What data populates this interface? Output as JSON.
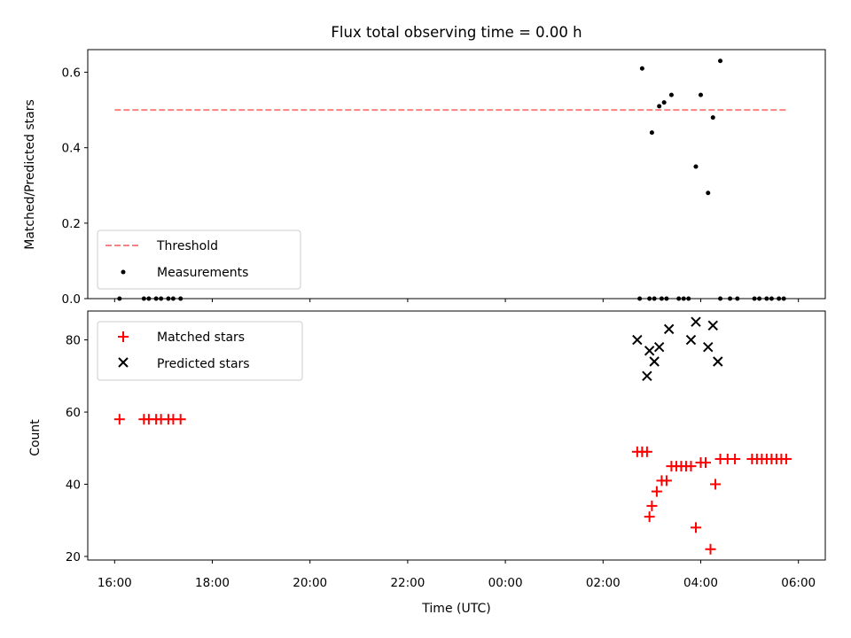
{
  "chart_data": [
    {
      "type": "scatter",
      "title": "Flux total observing time = 0.00 h",
      "xlabel": "",
      "ylabel": "Matched/Predicted stars",
      "x_unit": "hours since 16:00 UTC",
      "xlim": [
        -0.55,
        14.55
      ],
      "ylim": [
        0,
        0.66
      ],
      "yticks": [
        0.0,
        0.2,
        0.4,
        0.6
      ],
      "ytick_labels": [
        "0.0",
        "0.2",
        "0.4",
        "0.6"
      ],
      "threshold": {
        "name": "Threshold",
        "value": 0.5,
        "x_range": [
          0.0,
          13.75
        ],
        "color": "#ff8080",
        "style": "dashed"
      },
      "series": [
        {
          "name": "Measurements",
          "color": "#000000",
          "marker": "dot",
          "x": [
            0.1,
            0.6,
            0.7,
            0.85,
            0.95,
            1.1,
            1.2,
            1.35,
            10.75,
            10.95,
            11.05,
            11.2,
            11.3,
            11.55,
            11.65,
            11.75,
            12.4,
            12.6,
            12.75,
            13.1,
            13.2,
            13.35,
            13.45,
            13.6,
            13.7,
            10.8,
            11.0,
            11.15,
            11.25,
            11.4,
            11.9,
            12.0,
            12.15,
            12.25,
            12.4
          ],
          "y": [
            0.0,
            0.0,
            0.0,
            0.0,
            0.0,
            0.0,
            0.0,
            0.0,
            0.0,
            0.0,
            0.0,
            0.0,
            0.0,
            0.0,
            0.0,
            0.0,
            0.0,
            0.0,
            0.0,
            0.0,
            0.0,
            0.0,
            0.0,
            0.0,
            0.0,
            0.61,
            0.44,
            0.51,
            0.52,
            0.54,
            0.35,
            0.54,
            0.28,
            0.48,
            0.63
          ]
        }
      ],
      "legend_location": "lower-left"
    },
    {
      "type": "scatter",
      "title": "",
      "xlabel": "Time (UTC)",
      "ylabel": "Count",
      "x_unit": "hours since 16:00 UTC",
      "xlim": [
        -0.55,
        14.55
      ],
      "ylim": [
        19,
        88
      ],
      "xticks": [
        0,
        2,
        4,
        6,
        8,
        10,
        12,
        14
      ],
      "xtick_labels": [
        "16:00",
        "18:00",
        "20:00",
        "22:00",
        "00:00",
        "02:00",
        "04:00",
        "06:00"
      ],
      "yticks": [
        20,
        40,
        60,
        80
      ],
      "ytick_labels": [
        "20",
        "40",
        "60",
        "80"
      ],
      "series": [
        {
          "name": "Matched stars",
          "color": "#ff0000",
          "marker": "plus",
          "x": [
            0.1,
            0.6,
            0.7,
            0.85,
            0.95,
            1.1,
            1.2,
            1.35,
            10.7,
            10.8,
            10.9,
            10.95,
            11.0,
            11.1,
            11.2,
            11.3,
            11.4,
            11.5,
            11.6,
            11.7,
            11.8,
            11.9,
            12.0,
            12.1,
            12.2,
            12.3,
            12.4,
            12.55,
            12.7,
            13.05,
            13.15,
            13.25,
            13.35,
            13.45,
            13.55,
            13.65,
            13.75
          ],
          "y": [
            58,
            58,
            58,
            58,
            58,
            58,
            58,
            58,
            49,
            49,
            49,
            31,
            34,
            38,
            41,
            41,
            45,
            45,
            45,
            45,
            45,
            28,
            46,
            46,
            22,
            40,
            47,
            47,
            47,
            47,
            47,
            47,
            47,
            47,
            47,
            47,
            47
          ]
        },
        {
          "name": "Predicted stars",
          "color": "#000000",
          "marker": "x",
          "x": [
            10.7,
            10.9,
            10.95,
            11.05,
            11.15,
            11.35,
            11.8,
            11.9,
            12.15,
            12.25,
            12.35
          ],
          "y": [
            80,
            70,
            77,
            74,
            78,
            83,
            80,
            85,
            78,
            84,
            74
          ]
        }
      ],
      "legend_location": "upper-left"
    }
  ]
}
